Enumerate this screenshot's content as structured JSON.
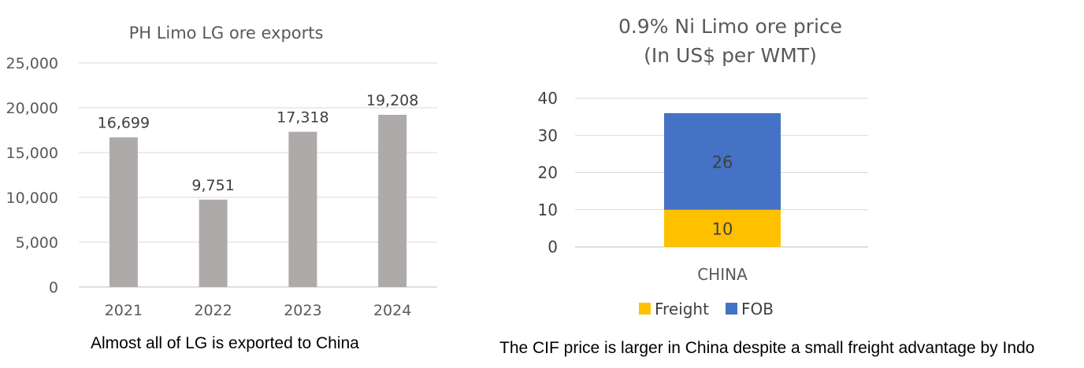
{
  "chart_data": [
    {
      "type": "bar",
      "title": "PH Limo LG  ore exports",
      "categories": [
        "2021",
        "2022",
        "2023",
        "2024"
      ],
      "values": [
        16699,
        9751,
        17318,
        19208
      ],
      "value_labels": [
        "16,699",
        "9,751",
        "17,318",
        "19,208"
      ],
      "yticks": [
        "0",
        "5,000",
        "10,000",
        "15,000",
        "20,000",
        "25,000"
      ],
      "ylim": [
        0,
        25000
      ],
      "grid": true,
      "bar_color": "#AEAAAA"
    },
    {
      "type": "bar",
      "stacked": true,
      "title_lines": [
        "0.9% Ni Limo ore price",
        "(In US$ per WMT)"
      ],
      "categories": [
        "CHINA"
      ],
      "series": [
        {
          "name": "Freight",
          "values": [
            10
          ],
          "color": "#FFC000"
        },
        {
          "name": "FOB",
          "values": [
            26
          ],
          "color": "#4472C4"
        }
      ],
      "yticks": [
        "0",
        "10",
        "20",
        "30",
        "40"
      ],
      "ylim": [
        0,
        40
      ],
      "grid": true,
      "legend_position": "bottom"
    }
  ],
  "captions": {
    "left": "Almost all of LG is exported to China",
    "right": "The CIF price is larger in China despite a small freight advantage by Indo"
  }
}
